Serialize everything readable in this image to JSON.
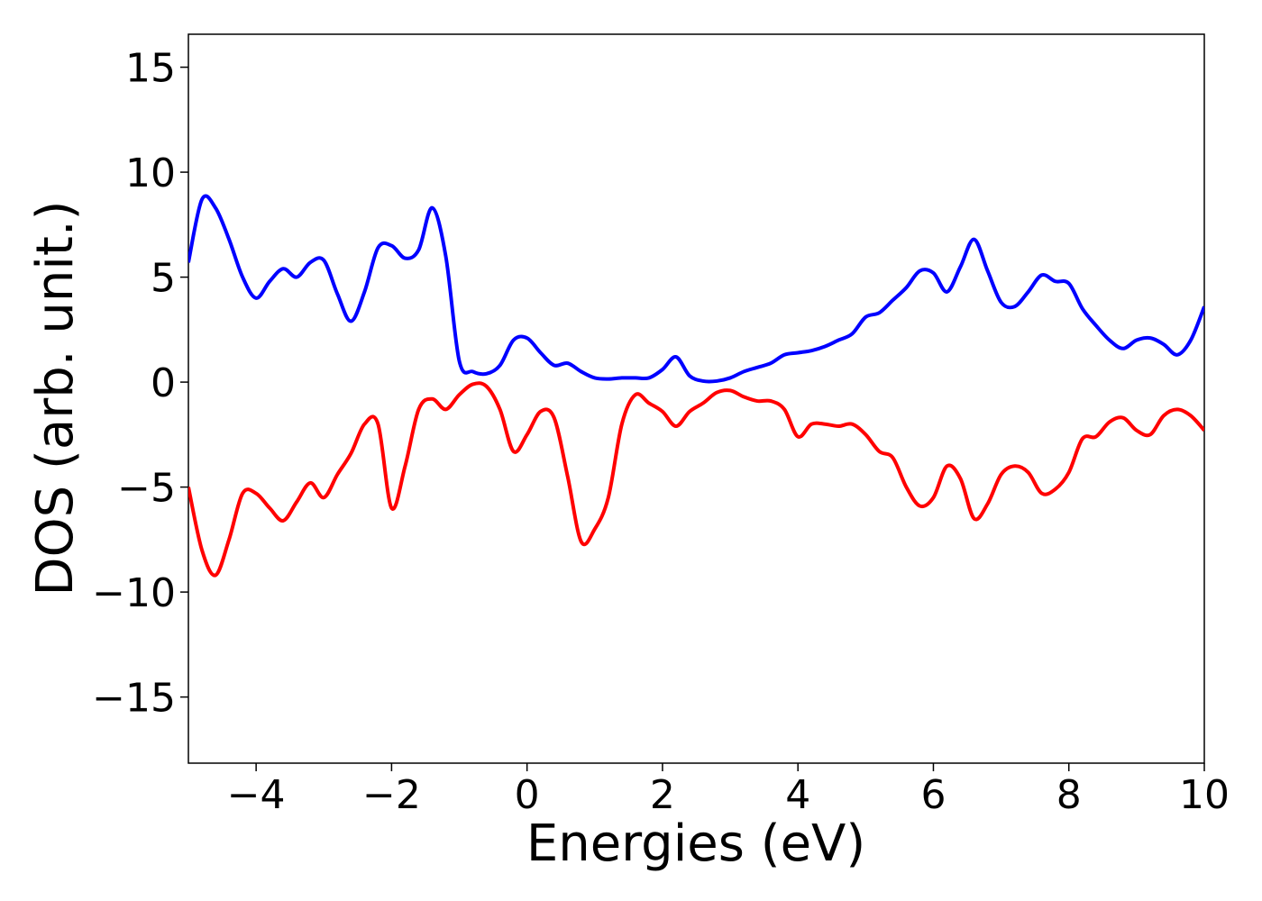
{
  "chart_data": {
    "type": "line",
    "xlabel": "Energies (eV)",
    "ylabel": "DOS (arb. unit.)",
    "xlim": [
      -5,
      10
    ],
    "ylim": [
      -18.15,
      16.57
    ],
    "xticks": [
      {
        "value": -4,
        "label": "−4"
      },
      {
        "value": -2,
        "label": "−2"
      },
      0,
      2,
      4,
      6,
      8,
      10
    ],
    "yticks": [
      {
        "value": -15,
        "label": "−15"
      },
      {
        "value": -10,
        "label": "−10"
      },
      {
        "value": -5,
        "label": "−5"
      },
      0,
      5,
      10,
      15
    ],
    "x": [
      -5.0,
      -4.8,
      -4.6,
      -4.4,
      -4.2,
      -4.0,
      -3.8,
      -3.6,
      -3.4,
      -3.2,
      -3.0,
      -2.8,
      -2.6,
      -2.4,
      -2.2,
      -2.0,
      -1.8,
      -1.6,
      -1.4,
      -1.2,
      -1.0,
      -0.8,
      -0.6,
      -0.4,
      -0.2,
      0.0,
      0.2,
      0.4,
      0.6,
      0.8,
      1.0,
      1.2,
      1.4,
      1.6,
      1.8,
      2.0,
      2.2,
      2.4,
      2.6,
      2.8,
      3.0,
      3.2,
      3.4,
      3.6,
      3.8,
      4.0,
      4.2,
      4.4,
      4.6,
      4.8,
      5.0,
      5.2,
      5.4,
      5.6,
      5.8,
      6.0,
      6.2,
      6.4,
      6.6,
      6.8,
      7.0,
      7.2,
      7.4,
      7.6,
      7.8,
      8.0,
      8.2,
      8.4,
      8.6,
      8.8,
      9.0,
      9.2,
      9.4,
      9.6,
      9.8,
      10.0
    ],
    "series": [
      {
        "color": "#0000ff",
        "values": [
          5.7,
          8.7,
          8.3,
          6.8,
          5.0,
          4.0,
          4.8,
          5.4,
          5.0,
          5.7,
          5.8,
          4.2,
          2.9,
          4.3,
          6.4,
          6.5,
          5.9,
          6.3,
          8.3,
          6.0,
          1.0,
          0.5,
          0.4,
          0.8,
          2.0,
          2.1,
          1.4,
          0.8,
          0.9,
          0.5,
          0.2,
          0.15,
          0.2,
          0.2,
          0.2,
          0.6,
          1.2,
          0.3,
          0.05,
          0.05,
          0.2,
          0.5,
          0.7,
          0.9,
          1.3,
          1.4,
          1.5,
          1.7,
          2.0,
          2.3,
          3.1,
          3.3,
          3.9,
          4.5,
          5.3,
          5.2,
          4.3,
          5.5,
          6.8,
          5.3,
          3.8,
          3.6,
          4.3,
          5.1,
          4.8,
          4.7,
          3.5,
          2.7,
          2.0,
          1.6,
          2.0,
          2.1,
          1.8,
          1.3,
          2.0,
          3.6
        ]
      },
      {
        "color": "#ff0000",
        "values": [
          -5.0,
          -8.0,
          -9.2,
          -7.5,
          -5.3,
          -5.3,
          -6.0,
          -6.6,
          -5.7,
          -4.8,
          -5.5,
          -4.4,
          -3.4,
          -2.0,
          -2.0,
          -6.0,
          -4.0,
          -1.3,
          -0.8,
          -1.3,
          -0.6,
          -0.1,
          -0.2,
          -1.3,
          -3.3,
          -2.5,
          -1.4,
          -1.7,
          -4.5,
          -7.6,
          -7.0,
          -5.5,
          -2.0,
          -0.6,
          -1.0,
          -1.4,
          -2.1,
          -1.4,
          -1.0,
          -0.5,
          -0.4,
          -0.7,
          -0.9,
          -0.9,
          -1.3,
          -2.6,
          -2.0,
          -2.0,
          -2.1,
          -2.0,
          -2.5,
          -3.3,
          -3.6,
          -5.0,
          -5.9,
          -5.5,
          -4.0,
          -4.6,
          -6.5,
          -5.8,
          -4.4,
          -4.0,
          -4.3,
          -5.3,
          -5.1,
          -4.3,
          -2.7,
          -2.6,
          -1.9,
          -1.7,
          -2.3,
          -2.5,
          -1.6,
          -1.3,
          -1.6,
          -2.3
        ]
      }
    ]
  }
}
